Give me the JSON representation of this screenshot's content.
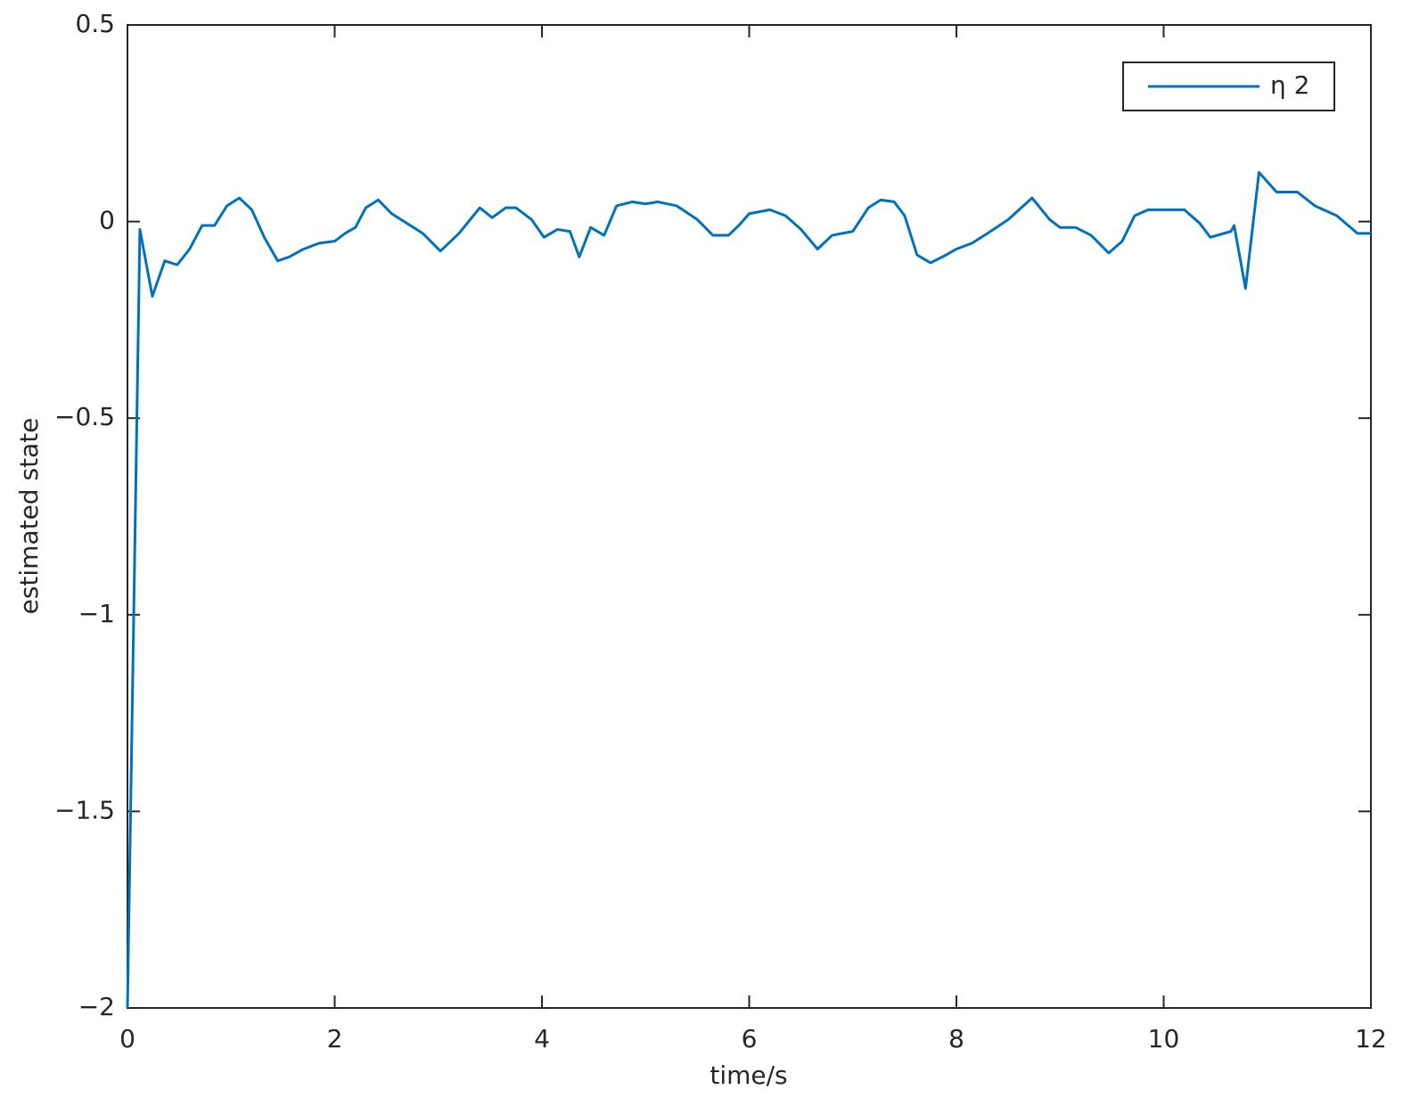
{
  "chart_data": {
    "type": "line",
    "xlabel": "time/s",
    "ylabel": "estimated state",
    "xlim": [
      0,
      12
    ],
    "ylim": [
      -2,
      0.5
    ],
    "xticks": [
      0,
      2,
      4,
      6,
      8,
      10,
      12
    ],
    "yticks": [
      {
        "value": -2,
        "label": "−2"
      },
      {
        "value": -1.5,
        "label": "−1.5"
      },
      {
        "value": -1,
        "label": "−1"
      },
      {
        "value": -0.5,
        "label": "−0.5"
      },
      0,
      0.5
    ],
    "legend": "upper right",
    "series": [
      {
        "name": "η 2",
        "color": "#0072bd",
        "x": [
          0,
          0.12,
          0.24,
          0.36,
          0.48,
          0.6,
          0.72,
          0.84,
          0.96,
          1.08,
          1.2,
          1.32,
          1.45,
          1.56,
          1.7,
          1.85,
          2.0,
          2.1,
          2.2,
          2.3,
          2.42,
          2.55,
          2.7,
          2.85,
          3.02,
          3.2,
          3.4,
          3.52,
          3.65,
          3.75,
          3.9,
          4.02,
          4.15,
          4.27,
          4.36,
          4.47,
          4.6,
          4.72,
          4.87,
          5.0,
          5.12,
          5.3,
          5.5,
          5.65,
          5.8,
          5.9,
          6.0,
          6.2,
          6.35,
          6.5,
          6.66,
          6.8,
          7.0,
          7.15,
          7.27,
          7.4,
          7.5,
          7.62,
          7.75,
          7.9,
          8.0,
          8.15,
          8.3,
          8.5,
          8.73,
          8.9,
          9.0,
          9.15,
          9.3,
          9.47,
          9.6,
          9.72,
          9.85,
          10.0,
          10.2,
          10.35,
          10.45,
          10.65,
          10.68,
          10.79,
          10.92,
          11.09,
          11.29,
          11.46,
          11.67,
          11.87,
          12
        ],
        "values": [
          -2,
          -0.02,
          -0.19,
          -0.1,
          -0.11,
          -0.07,
          -0.01,
          -0.01,
          0.04,
          0.06,
          0.03,
          -0.04,
          -0.1,
          -0.09,
          -0.07,
          -0.055,
          -0.05,
          -0.03,
          -0.015,
          0.035,
          0.055,
          0.02,
          -0.005,
          -0.03,
          -0.075,
          -0.03,
          0.035,
          0.01,
          0.035,
          0.035,
          0.005,
          -0.04,
          -0.02,
          -0.025,
          -0.09,
          -0.015,
          -0.035,
          0.04,
          0.05,
          0.045,
          0.05,
          0.04,
          0.005,
          -0.035,
          -0.035,
          -0.01,
          0.02,
          0.03,
          0.015,
          -0.02,
          -0.07,
          -0.035,
          -0.025,
          0.035,
          0.055,
          0.05,
          0.015,
          -0.085,
          -0.105,
          -0.085,
          -0.07,
          -0.055,
          -0.03,
          0.005,
          0.06,
          0.005,
          -0.015,
          -0.015,
          -0.035,
          -0.08,
          -0.05,
          0.015,
          0.03,
          0.03,
          0.03,
          -0.005,
          -0.04,
          -0.025,
          -0.01,
          -0.17,
          0.125,
          0.075,
          0.075,
          0.04,
          0.015,
          -0.03,
          -0.03
        ]
      }
    ]
  }
}
